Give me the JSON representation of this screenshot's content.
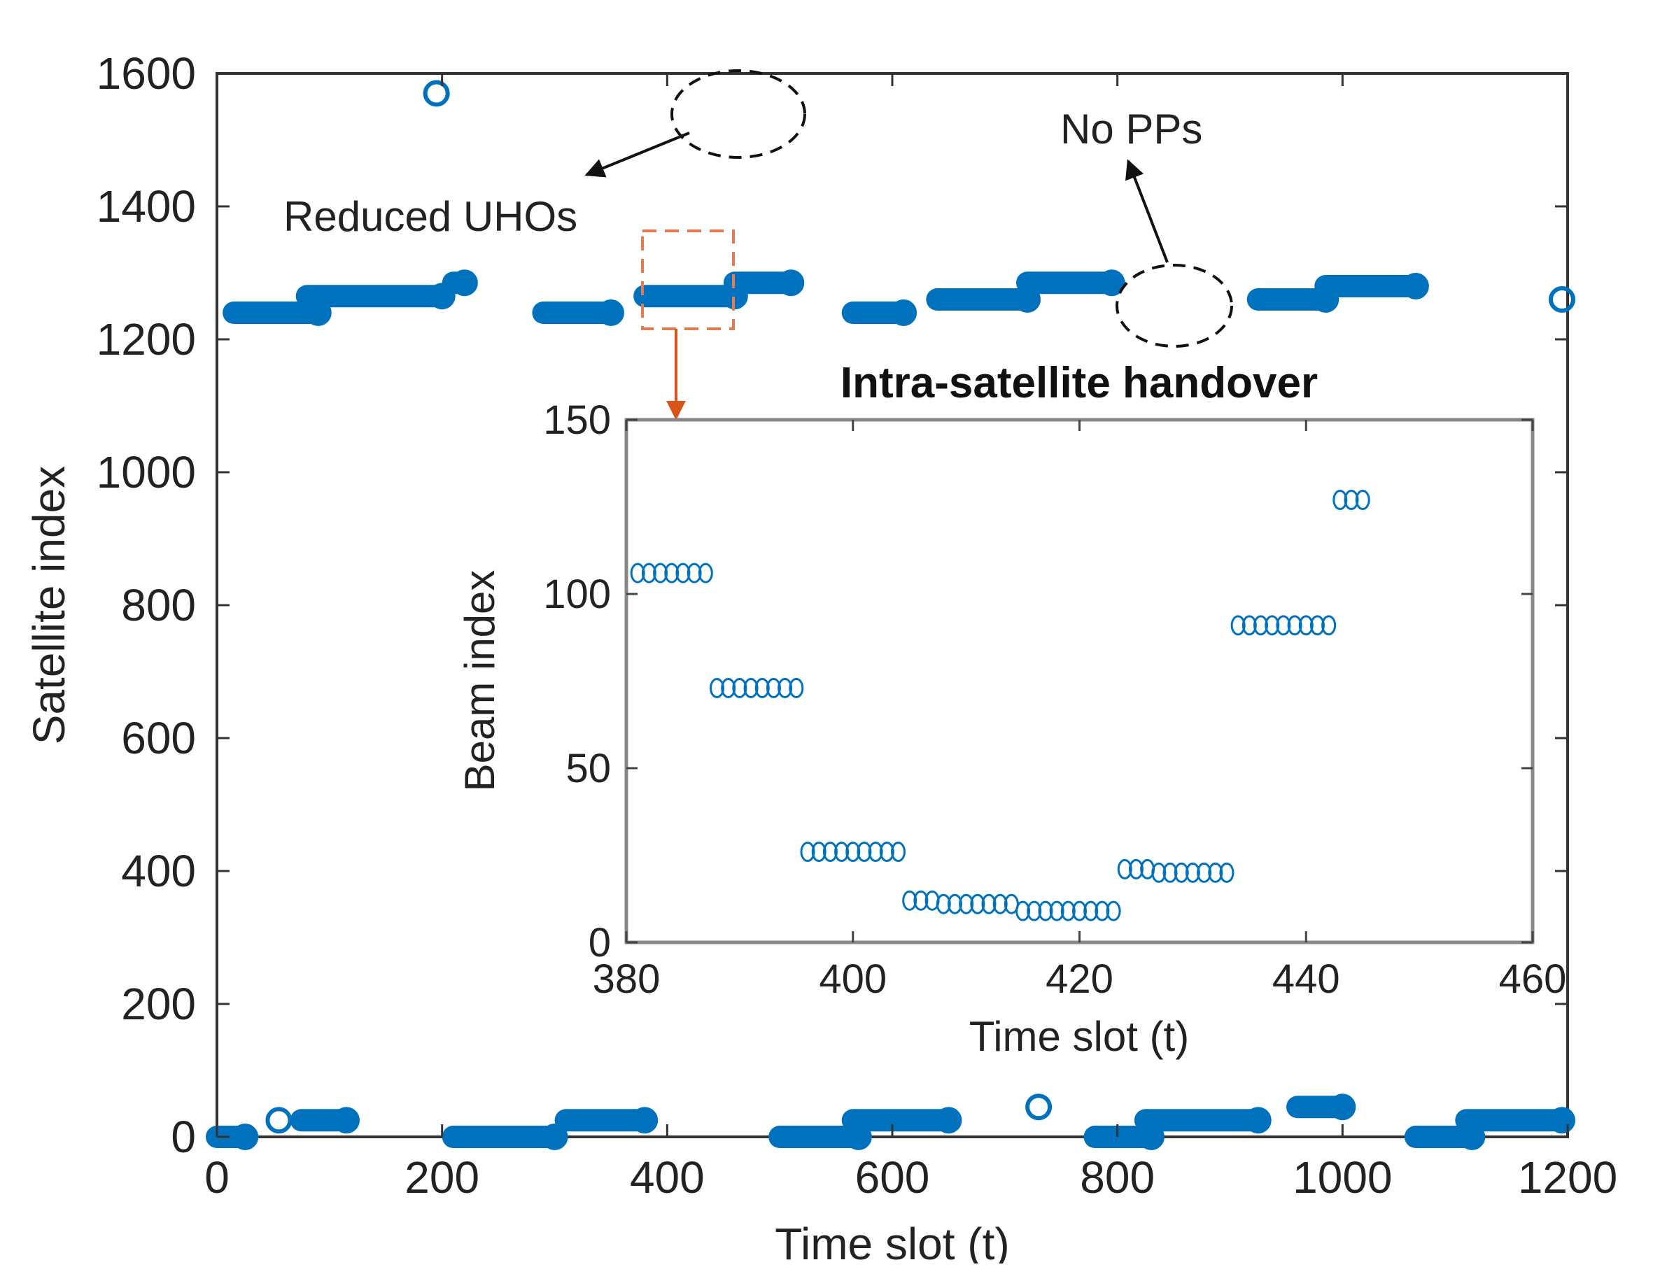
{
  "chart_data": [
    {
      "type": "scatter",
      "xlabel": "Time slot (t)",
      "ylabel": "Satellite index",
      "xlim": [
        0,
        1200
      ],
      "ylim": [
        0,
        1600
      ],
      "xticks": [
        0,
        200,
        400,
        600,
        800,
        1000,
        1200
      ],
      "yticks": [
        0,
        200,
        400,
        600,
        800,
        1000,
        1200,
        1400,
        1600
      ],
      "grid": false,
      "marker_color": "#0072BD",
      "segments": [
        {
          "x": [
            0,
            25
          ],
          "y": 0
        },
        {
          "x": 55,
          "y": 25
        },
        {
          "x": [
            75,
            115
          ],
          "y": 25
        },
        {
          "x": [
            15,
            90
          ],
          "y": 1240
        },
        {
          "x": 195,
          "y": 1570
        },
        {
          "x": [
            80,
            200
          ],
          "y": 1265
        },
        {
          "x": [
            210,
            220
          ],
          "y": 1285
        },
        {
          "x": [
            210,
            300
          ],
          "y": 0
        },
        {
          "x": [
            290,
            350
          ],
          "y": 1240
        },
        {
          "x": [
            310,
            380
          ],
          "y": 25
        },
        {
          "x": [
            380,
            460
          ],
          "y": 1265
        },
        {
          "x": [
            460,
            510
          ],
          "y": 1285
        },
        {
          "x": [
            500,
            570
          ],
          "y": 0
        },
        {
          "x": [
            565,
            650
          ],
          "y": 25
        },
        {
          "x": [
            565,
            610
          ],
          "y": 1240
        },
        {
          "x": [
            640,
            720
          ],
          "y": 1260
        },
        {
          "x": [
            720,
            795
          ],
          "y": 1285
        },
        {
          "x": 730,
          "y": 45
        },
        {
          "x": [
            780,
            830
          ],
          "y": 0
        },
        {
          "x": [
            825,
            925
          ],
          "y": 25
        },
        {
          "x": [
            925,
            985
          ],
          "y": 1260
        },
        {
          "x": [
            985,
            1065
          ],
          "y": 1280
        },
        {
          "x": [
            960,
            1000
          ],
          "y": 45
        },
        {
          "x": [
            1065,
            1115
          ],
          "y": 0
        },
        {
          "x": [
            1110,
            1195
          ],
          "y": 25
        },
        {
          "x": 1195,
          "y": 1260
        }
      ]
    },
    {
      "type": "scatter",
      "title": "Intra-satellite handover",
      "xlabel": "Time slot (t)",
      "ylabel": "Beam index",
      "xlim": [
        380,
        460
      ],
      "ylim": [
        0,
        150
      ],
      "xticks": [
        380,
        400,
        420,
        440,
        460
      ],
      "yticks": [
        0,
        50,
        100,
        150
      ],
      "grid": false,
      "marker_color": "#0072BD",
      "points": [
        [
          381,
          106
        ],
        [
          382,
          106
        ],
        [
          383,
          106
        ],
        [
          384,
          106
        ],
        [
          385,
          106
        ],
        [
          386,
          106
        ],
        [
          387,
          106
        ],
        [
          388,
          73
        ],
        [
          389,
          73
        ],
        [
          390,
          73
        ],
        [
          391,
          73
        ],
        [
          392,
          73
        ],
        [
          393,
          73
        ],
        [
          394,
          73
        ],
        [
          395,
          73
        ],
        [
          396,
          26
        ],
        [
          397,
          26
        ],
        [
          398,
          26
        ],
        [
          399,
          26
        ],
        [
          400,
          26
        ],
        [
          401,
          26
        ],
        [
          402,
          26
        ],
        [
          403,
          26
        ],
        [
          404,
          26
        ],
        [
          405,
          12
        ],
        [
          406,
          12
        ],
        [
          407,
          12
        ],
        [
          408,
          11
        ],
        [
          409,
          11
        ],
        [
          410,
          11
        ],
        [
          411,
          11
        ],
        [
          412,
          11
        ],
        [
          413,
          11
        ],
        [
          414,
          11
        ],
        [
          415,
          9
        ],
        [
          416,
          9
        ],
        [
          417,
          9
        ],
        [
          418,
          9
        ],
        [
          419,
          9
        ],
        [
          420,
          9
        ],
        [
          421,
          9
        ],
        [
          422,
          9
        ],
        [
          423,
          9
        ],
        [
          424,
          21
        ],
        [
          425,
          21
        ],
        [
          426,
          21
        ],
        [
          427,
          20
        ],
        [
          428,
          20
        ],
        [
          429,
          20
        ],
        [
          430,
          20
        ],
        [
          431,
          20
        ],
        [
          432,
          20
        ],
        [
          433,
          20
        ],
        [
          434,
          91
        ],
        [
          435,
          91
        ],
        [
          436,
          91
        ],
        [
          437,
          91
        ],
        [
          438,
          91
        ],
        [
          439,
          91
        ],
        [
          440,
          91
        ],
        [
          441,
          91
        ],
        [
          442,
          91
        ],
        [
          443,
          127
        ],
        [
          444,
          127
        ],
        [
          445,
          127
        ]
      ]
    }
  ],
  "annotations": {
    "reduced_uhos": "Reduced UHOs",
    "no_pps": "No PPs"
  },
  "colors": {
    "marker": "#0072BD",
    "highlight_box": "#E07B54",
    "highlight_arrow": "#D95319"
  }
}
